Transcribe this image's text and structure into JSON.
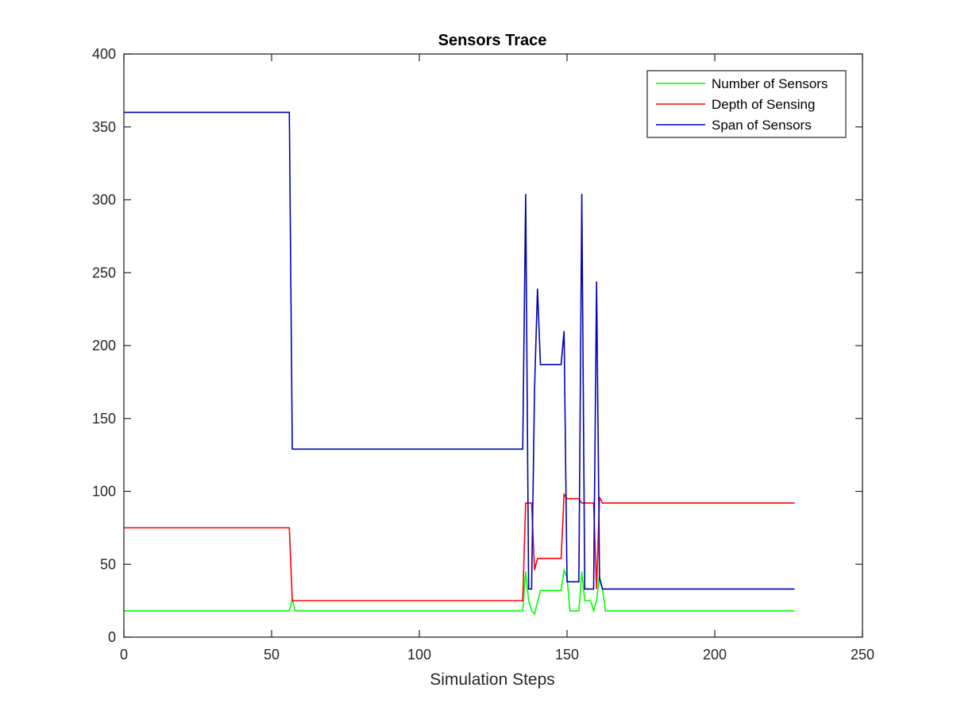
{
  "chart_data": {
    "type": "line",
    "title": "Sensors Trace",
    "xlabel": "Simulation Steps",
    "ylabel": "",
    "xlim": [
      0,
      250
    ],
    "ylim": [
      0,
      400
    ],
    "xticks": [
      0,
      50,
      100,
      150,
      200,
      250
    ],
    "yticks": [
      0,
      50,
      100,
      150,
      200,
      250,
      300,
      350,
      400
    ],
    "xtick_labels": [
      "0",
      "50",
      "100",
      "150",
      "200",
      "250"
    ],
    "ytick_labels": [
      "0",
      "50",
      "100",
      "150",
      "200",
      "250",
      "300",
      "350",
      "400"
    ],
    "grid": false,
    "legend_position": "top-right",
    "series": [
      {
        "name": "Number of Sensors",
        "color": "#00ff00",
        "x": [
          0,
          55,
          56,
          57,
          58,
          135,
          136,
          137,
          138,
          139,
          140,
          141,
          142,
          143,
          147,
          148,
          149,
          150,
          151,
          154,
          155,
          156,
          157,
          158,
          159,
          160,
          161,
          162,
          163,
          227
        ],
        "y": [
          18,
          18,
          18,
          26,
          18,
          18,
          45,
          25,
          18,
          16,
          24,
          32,
          32,
          32,
          32,
          32,
          46,
          41,
          18,
          18,
          45,
          25,
          25,
          25,
          18,
          25,
          42,
          33,
          18,
          18
        ]
      },
      {
        "name": "Depth of Sensing",
        "color": "#ff0000",
        "x": [
          0,
          56,
          57,
          135,
          136,
          137,
          138,
          139,
          140,
          141,
          142,
          143,
          147,
          148,
          149,
          150,
          151,
          154,
          155,
          156,
          157,
          158,
          159,
          160,
          161,
          162,
          163,
          227
        ],
        "y": [
          75,
          75,
          25,
          25,
          92,
          92,
          92,
          46,
          54,
          54,
          54,
          54,
          54,
          54,
          98,
          95,
          95,
          95,
          92,
          92,
          92,
          92,
          92,
          33,
          96,
          92,
          92,
          92
        ]
      },
      {
        "name": "Span of Sensors",
        "color": "#0000b4",
        "x": [
          0,
          56,
          57,
          135,
          136,
          137,
          138,
          139,
          140,
          141,
          145,
          147,
          148,
          149,
          150,
          151,
          154,
          155,
          156,
          157,
          158,
          159,
          160,
          161,
          162,
          163,
          227
        ],
        "y": [
          360,
          360,
          129,
          129,
          304,
          33,
          33,
          170,
          239,
          187,
          187,
          187,
          187,
          210,
          38,
          38,
          38,
          304,
          33,
          33,
          33,
          33,
          244,
          40,
          33,
          33,
          33
        ]
      }
    ]
  }
}
